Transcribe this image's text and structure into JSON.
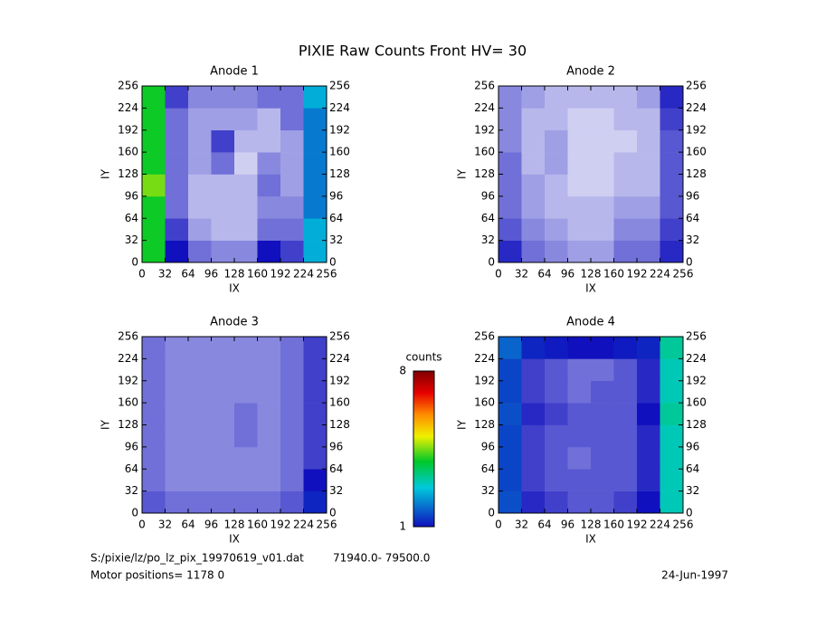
{
  "title": "PIXIE Raw Counts Front HV= 30",
  "chart_data": [
    {
      "type": "heatmap",
      "title": "Anode 1",
      "xlabel": "IX",
      "ylabel": "IY",
      "xlim": [
        0,
        256
      ],
      "ylim": [
        0,
        256
      ],
      "xticks": [
        0,
        32,
        64,
        96,
        128,
        160,
        192,
        224,
        256
      ],
      "yticks": [
        0,
        32,
        64,
        96,
        128,
        160,
        192,
        224,
        256
      ],
      "z": [
        [
          4,
          1,
          0.6,
          0.5,
          0.5,
          1,
          0.8,
          2.5
        ],
        [
          4,
          0.8,
          0.4,
          0.3,
          0.3,
          0.6,
          0.6,
          2.5
        ],
        [
          4,
          0.6,
          0.3,
          0.3,
          0.3,
          0.5,
          0.5,
          2
        ],
        [
          4.5,
          0.6,
          0.3,
          0.3,
          0.3,
          0.6,
          0.4,
          2
        ],
        [
          4,
          0.6,
          0.4,
          0.6,
          0.2,
          0.5,
          0.4,
          2
        ],
        [
          4,
          0.6,
          0.4,
          0.8,
          0.3,
          0.3,
          0.4,
          2
        ],
        [
          4,
          0.6,
          0.4,
          0.4,
          0.4,
          0.3,
          0.6,
          2
        ],
        [
          4,
          0.8,
          0.5,
          0.5,
          0.5,
          0.6,
          0.6,
          2.5
        ]
      ]
    },
    {
      "type": "heatmap",
      "title": "Anode 2",
      "xlabel": "IX",
      "ylabel": "IY",
      "xlim": [
        0,
        256
      ],
      "ylim": [
        0,
        256
      ],
      "xticks": [
        0,
        32,
        64,
        96,
        128,
        160,
        192,
        224,
        256
      ],
      "yticks": [
        0,
        32,
        64,
        96,
        128,
        160,
        192,
        224,
        256
      ],
      "z": [
        [
          0.9,
          0.6,
          0.5,
          0.4,
          0.4,
          0.6,
          0.6,
          0.9
        ],
        [
          0.7,
          0.5,
          0.4,
          0.3,
          0.3,
          0.5,
          0.5,
          0.8
        ],
        [
          0.6,
          0.4,
          0.3,
          0.3,
          0.3,
          0.4,
          0.4,
          0.7
        ],
        [
          0.6,
          0.4,
          0.3,
          0.2,
          0.2,
          0.3,
          0.3,
          0.7
        ],
        [
          0.6,
          0.3,
          0.4,
          0.2,
          0.2,
          0.3,
          0.3,
          0.7
        ],
        [
          0.5,
          0.3,
          0.4,
          0.2,
          0.2,
          0.2,
          0.3,
          0.7
        ],
        [
          0.5,
          0.3,
          0.3,
          0.2,
          0.2,
          0.3,
          0.3,
          0.8
        ],
        [
          0.5,
          0.4,
          0.3,
          0.3,
          0.3,
          0.3,
          0.4,
          0.9
        ]
      ]
    },
    {
      "type": "heatmap",
      "title": "Anode 3",
      "xlabel": "IX",
      "ylabel": "IY",
      "xlim": [
        0,
        256
      ],
      "ylim": [
        0,
        256
      ],
      "xticks": [
        0,
        32,
        64,
        96,
        128,
        160,
        192,
        224,
        256
      ],
      "yticks": [
        0,
        32,
        64,
        96,
        128,
        160,
        192,
        224,
        256
      ],
      "z": [
        [
          0.7,
          0.6,
          0.6,
          0.6,
          0.6,
          0.6,
          0.7,
          1.2
        ],
        [
          0.6,
          0.5,
          0.5,
          0.5,
          0.5,
          0.5,
          0.6,
          1
        ],
        [
          0.6,
          0.5,
          0.5,
          0.5,
          0.5,
          0.5,
          0.6,
          0.8
        ],
        [
          0.6,
          0.5,
          0.5,
          0.5,
          0.6,
          0.5,
          0.6,
          0.8
        ],
        [
          0.6,
          0.5,
          0.5,
          0.5,
          0.6,
          0.5,
          0.6,
          0.8
        ],
        [
          0.6,
          0.5,
          0.5,
          0.5,
          0.5,
          0.5,
          0.6,
          0.8
        ],
        [
          0.6,
          0.5,
          0.5,
          0.5,
          0.5,
          0.5,
          0.6,
          0.8
        ],
        [
          0.6,
          0.5,
          0.5,
          0.5,
          0.5,
          0.5,
          0.6,
          0.8
        ]
      ]
    },
    {
      "type": "heatmap",
      "title": "Anode 4",
      "xlabel": "IX",
      "ylabel": "IY",
      "xlim": [
        0,
        256
      ],
      "ylim": [
        0,
        256
      ],
      "xticks": [
        0,
        32,
        64,
        96,
        128,
        160,
        192,
        224,
        256
      ],
      "yticks": [
        0,
        32,
        64,
        96,
        128,
        160,
        192,
        224,
        256
      ],
      "z": [
        [
          1.6,
          0.9,
          0.8,
          0.7,
          0.7,
          0.8,
          1,
          3
        ],
        [
          1.5,
          0.8,
          0.7,
          0.7,
          0.7,
          0.7,
          0.9,
          3
        ],
        [
          1.5,
          0.8,
          0.7,
          0.6,
          0.7,
          0.7,
          0.9,
          3
        ],
        [
          1.5,
          0.8,
          0.7,
          0.7,
          0.7,
          0.7,
          0.9,
          3
        ],
        [
          1.6,
          0.9,
          0.8,
          0.7,
          0.7,
          0.7,
          1,
          3.2
        ],
        [
          1.5,
          0.8,
          0.7,
          0.6,
          0.7,
          0.7,
          0.9,
          3
        ],
        [
          1.5,
          0.8,
          0.7,
          0.6,
          0.6,
          0.7,
          0.9,
          3
        ],
        [
          1.8,
          1.2,
          1.1,
          1,
          1,
          1.1,
          1.2,
          3.2
        ]
      ]
    }
  ],
  "colorbar": {
    "label": "counts",
    "zlim": [
      1,
      8
    ],
    "ticks": [
      1,
      8
    ]
  },
  "footer": {
    "file": "S:/pixie/lz/po_lz_pix_19970619_v01.dat",
    "range": "71940.0- 79500.0",
    "motor": "Motor positions= 1178 0",
    "date": "24-Jun-1997"
  }
}
